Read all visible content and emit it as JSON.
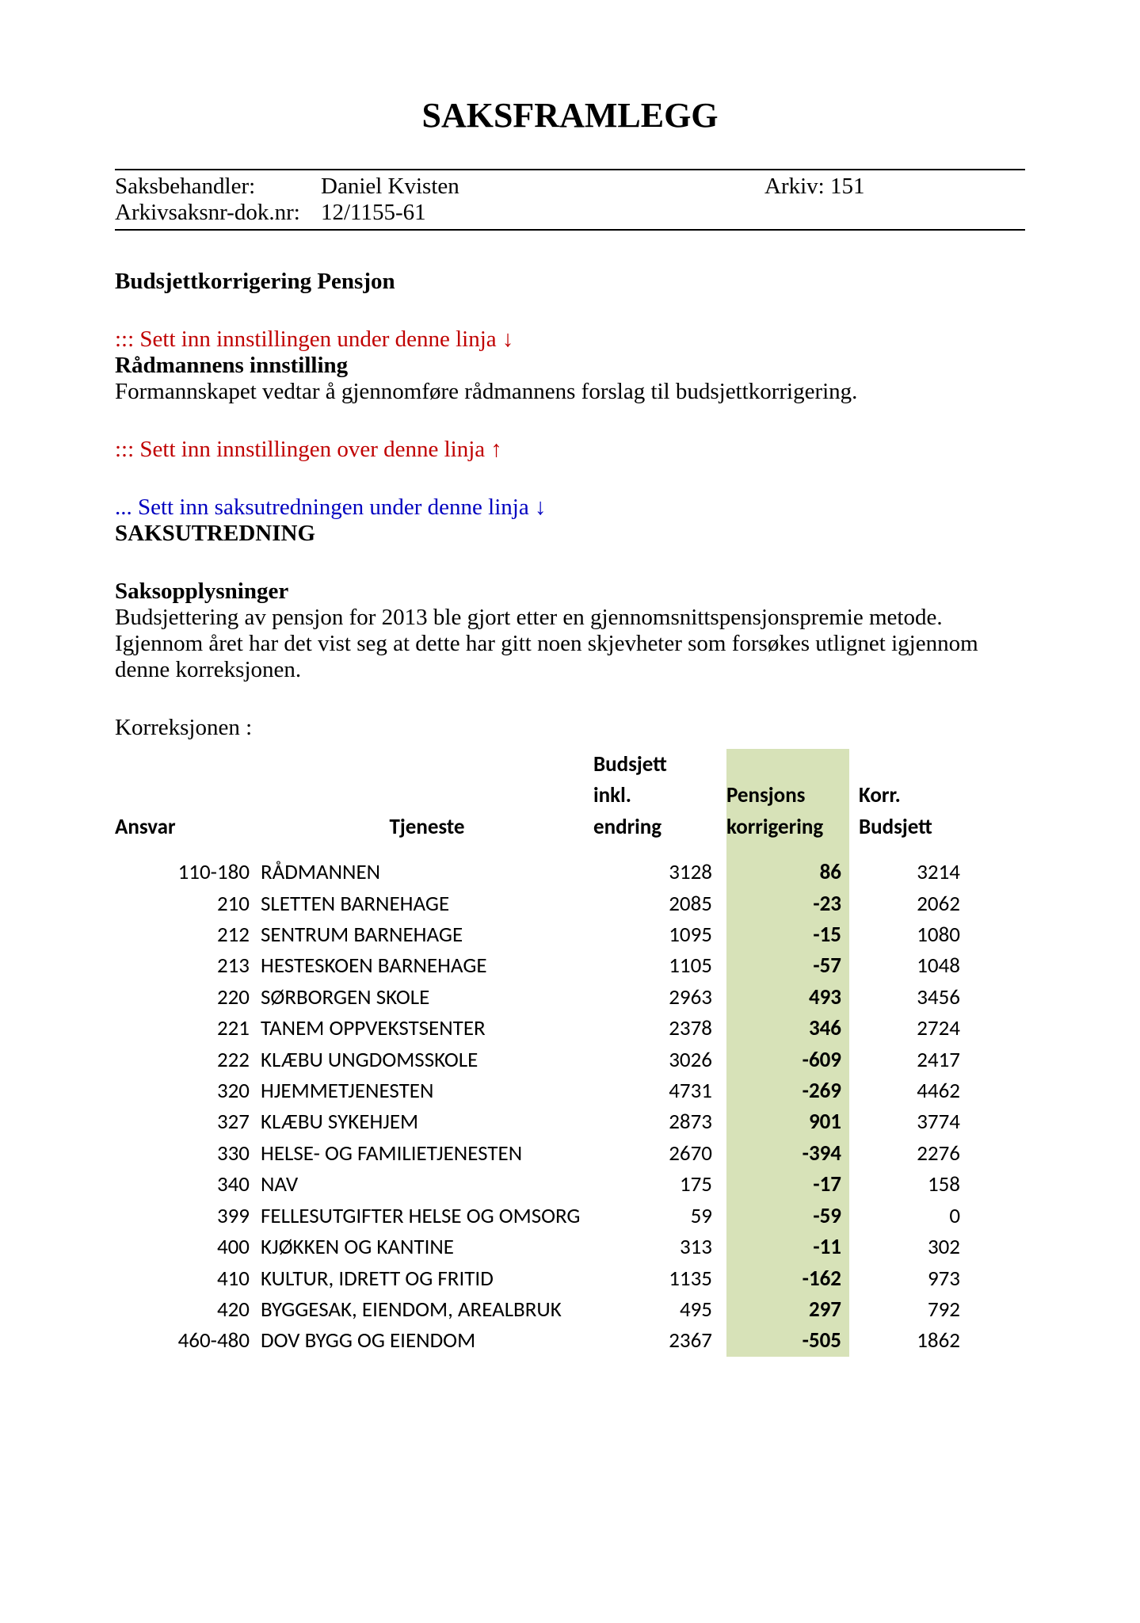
{
  "title": "SAKSFRAMLEGG",
  "meta": {
    "label_saksbehandler": "Saksbehandler:",
    "saksbehandler": "Daniel Kvisten",
    "label_arkiv": "Arkiv: 151",
    "label_arkivsaksnr": "Arkivsaksnr-dok.nr:",
    "arkivsaksnr": "12/1155-61"
  },
  "section1_title": "Budsjettkorrigering Pensjon",
  "red_marker_under": "::: Sett inn innstillingen under denne linja ↓",
  "raadmann_title": "Rådmannens innstilling",
  "raadmann_text": "Formannskapet vedtar å gjennomføre rådmannens forslag til budsjettkorrigering.",
  "red_marker_over": "::: Sett inn innstillingen over denne linja ↑",
  "blue_marker": "... Sett inn saksutredningen under denne linja ↓",
  "saksutredning_title": "SAKSUTREDNING",
  "saksoppl_title": "Saksopplysninger",
  "saksoppl_text1": "Budsjettering av pensjon for 2013 ble gjort etter en gjennomsnittspensjonspremie metode.",
  "saksoppl_text2": "Igjennom året har det vist seg at dette har gitt noen skjevheter som forsøkes utlignet igjennom denne korreksjonen.",
  "korreksjonen_label": "Korreksjonen :",
  "table": {
    "headers": {
      "ansvar": "Ansvar",
      "tjeneste": "Tjeneste",
      "budsjett_l1": "Budsjett",
      "budsjett_l2": "inkl.",
      "budsjett_l3": "endring",
      "pensjon_l1": "Pensjons",
      "pensjon_l2": "korrigering",
      "korr_l1": "Korr.",
      "korr_l2": "Budsjett"
    },
    "highlight_bg": "#d7e2b8",
    "rows": [
      {
        "ansvar": "110-180",
        "tjeneste": "RÅDMANNEN",
        "budsjett": "3128",
        "pensjon": "86",
        "korr": "3214"
      },
      {
        "ansvar": "210",
        "tjeneste": "SLETTEN BARNEHAGE",
        "budsjett": "2085",
        "pensjon": "-23",
        "korr": "2062"
      },
      {
        "ansvar": "212",
        "tjeneste": "SENTRUM BARNEHAGE",
        "budsjett": "1095",
        "pensjon": "-15",
        "korr": "1080"
      },
      {
        "ansvar": "213",
        "tjeneste": "HESTESKOEN BARNEHAGE",
        "budsjett": "1105",
        "pensjon": "-57",
        "korr": "1048"
      },
      {
        "ansvar": "220",
        "tjeneste": "SØRBORGEN SKOLE",
        "budsjett": "2963",
        "pensjon": "493",
        "korr": "3456"
      },
      {
        "ansvar": "221",
        "tjeneste": "TANEM OPPVEKSTSENTER",
        "budsjett": "2378",
        "pensjon": "346",
        "korr": "2724"
      },
      {
        "ansvar": "222",
        "tjeneste": "KLÆBU UNGDOMSSKOLE",
        "budsjett": "3026",
        "pensjon": "-609",
        "korr": "2417"
      },
      {
        "ansvar": "320",
        "tjeneste": "HJEMMETJENESTEN",
        "budsjett": "4731",
        "pensjon": "-269",
        "korr": "4462"
      },
      {
        "ansvar": "327",
        "tjeneste": "KLÆBU SYKEHJEM",
        "budsjett": "2873",
        "pensjon": "901",
        "korr": "3774"
      },
      {
        "ansvar": "330",
        "tjeneste": "HELSE- OG FAMILIETJENESTEN",
        "budsjett": "2670",
        "pensjon": "-394",
        "korr": "2276"
      },
      {
        "ansvar": "340",
        "tjeneste": "NAV",
        "budsjett": "175",
        "pensjon": "-17",
        "korr": "158"
      },
      {
        "ansvar": "399",
        "tjeneste": "FELLESUTGIFTER HELSE OG OMSORG",
        "budsjett": "59",
        "pensjon": "-59",
        "korr": "0"
      },
      {
        "ansvar": "400",
        "tjeneste": "KJØKKEN OG KANTINE",
        "budsjett": "313",
        "pensjon": "-11",
        "korr": "302"
      },
      {
        "ansvar": "410",
        "tjeneste": "KULTUR, IDRETT OG FRITID",
        "budsjett": "1135",
        "pensjon": "-162",
        "korr": "973"
      },
      {
        "ansvar": "420",
        "tjeneste": "BYGGESAK, EIENDOM, AREALBRUK",
        "budsjett": "495",
        "pensjon": "297",
        "korr": "792"
      },
      {
        "ansvar": "460-480",
        "tjeneste": "DOV BYGG OG EIENDOM",
        "budsjett": "2367",
        "pensjon": "-505",
        "korr": "1862"
      }
    ]
  }
}
